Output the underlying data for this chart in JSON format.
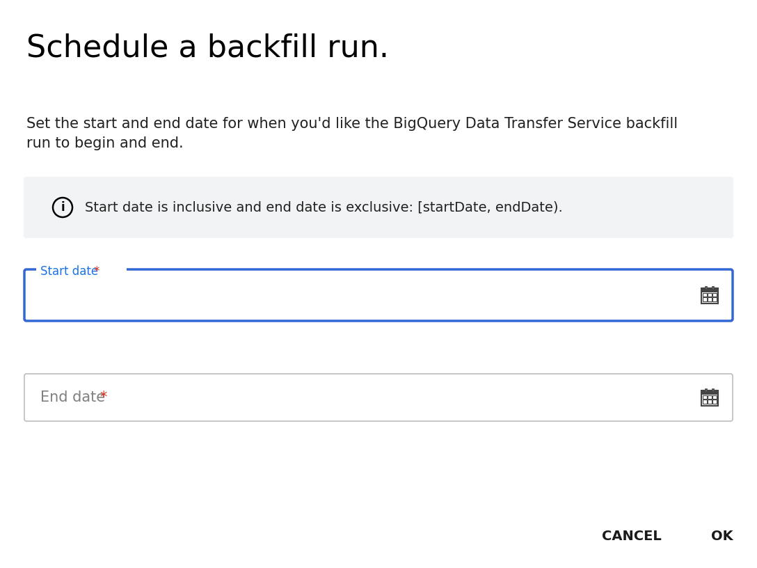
{
  "title": "Schedule a backfill run.",
  "description_line1": "Set the start and end date for when you'd like the BigQuery Data Transfer Service backfill",
  "description_line2": "run to begin and end.",
  "info_text": "Start date is inclusive and end date is exclusive: [startDate, endDate).",
  "start_label": "Start date",
  "end_label": "End date",
  "required_marker": "*",
  "cancel_text": "CANCEL",
  "ok_text": "OK",
  "bg_color": "#ffffff",
  "info_box_color": "#f1f3f4",
  "start_field_border_active": "#3367d6",
  "end_field_border": "#bdbdbd",
  "label_active_color": "#1a73e8",
  "required_color": "#d93025",
  "title_fontsize": 32,
  "desc_fontsize": 15,
  "info_fontsize": 14,
  "label_fontsize": 12,
  "button_fontsize": 14,
  "field_text_color": "#808080",
  "button_color": "#1a1a1a"
}
